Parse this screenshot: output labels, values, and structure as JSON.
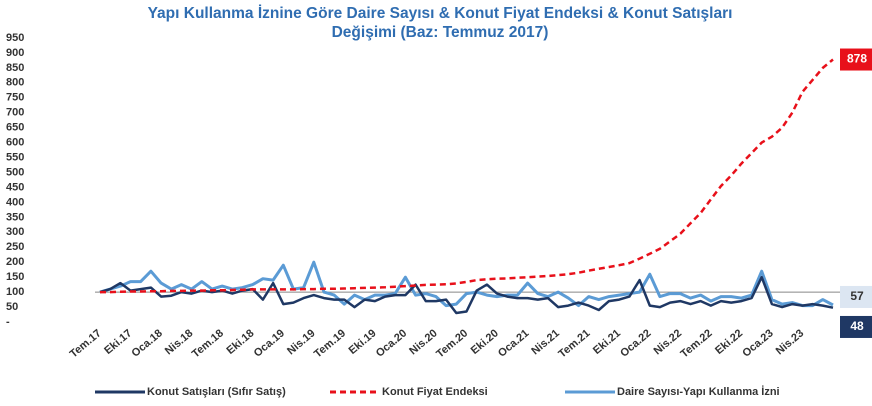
{
  "chart_data": {
    "type": "line",
    "title": "Yapı Kullanma İznine Göre Daire Sayısı & Konut Fiyat Endeksi & Konut Satışları Değişimi (Baz: Temmuz 2017)",
    "categories": [
      "Tem.17",
      null,
      null,
      "Eki.17",
      null,
      null,
      "Oca.18",
      null,
      null,
      "Nis.18",
      null,
      null,
      "Tem.18",
      null,
      null,
      "Eki.18",
      null,
      null,
      "Oca.19",
      null,
      null,
      "Nis.19",
      null,
      null,
      "Tem.19",
      null,
      null,
      "Eki.19",
      null,
      null,
      "Oca.20",
      null,
      null,
      "Nis.20",
      null,
      null,
      "Tem.20",
      null,
      null,
      "Eki.20",
      null,
      null,
      "Oca.21",
      null,
      null,
      "Nis.21",
      null,
      null,
      "Tem.21",
      null,
      null,
      "Eki.21",
      null,
      null,
      "Oca.22",
      null,
      null,
      "Nis.22",
      null,
      null,
      "Tem.22",
      null,
      null,
      "Eki.22",
      null,
      null,
      "Oca.23",
      null,
      null,
      "Nis.23",
      null,
      null,
      null
    ],
    "series": [
      {
        "name": "Konut Satışları (Sıfır Satış)",
        "color": "#1f3864",
        "end_label": "48",
        "values": [
          100,
          110,
          130,
          105,
          110,
          115,
          85,
          88,
          100,
          95,
          105,
          100,
          105,
          95,
          105,
          110,
          75,
          130,
          60,
          65,
          80,
          90,
          80,
          75,
          75,
          50,
          75,
          70,
          85,
          90,
          90,
          125,
          70,
          70,
          75,
          30,
          35,
          105,
          125,
          95,
          85,
          80,
          80,
          75,
          80,
          50,
          55,
          65,
          55,
          40,
          70,
          75,
          85,
          140,
          55,
          50,
          65,
          70,
          60,
          70,
          55,
          70,
          65,
          70,
          80,
          150,
          60,
          50,
          60,
          55,
          60,
          55,
          48
        ]
      },
      {
        "name": "Konut Fiyat Endeksi",
        "color": "#e8101a",
        "dashed": true,
        "end_label": "878",
        "values": [
          100,
          100,
          101,
          102,
          102,
          103,
          103,
          104,
          104,
          105,
          105,
          106,
          106,
          107,
          108,
          109,
          109,
          109,
          109,
          109,
          110,
          110,
          111,
          111,
          112,
          113,
          114,
          115,
          116,
          118,
          120,
          122,
          124,
          125,
          126,
          129,
          134,
          140,
          143,
          145,
          146,
          148,
          150,
          152,
          154,
          157,
          160,
          165,
          172,
          178,
          184,
          190,
          197,
          212,
          228,
          245,
          270,
          295,
          330,
          365,
          410,
          455,
          490,
          530,
          565,
          600,
          620,
          650,
          700,
          770,
          810,
          850,
          878
        ]
      },
      {
        "name": "Daire Sayısı-Yapı Kullanma İzni",
        "color": "#5b9bd5",
        "end_label": "57",
        "end_label_color": "#dce6f2",
        "values": [
          100,
          110,
          120,
          135,
          135,
          170,
          130,
          110,
          125,
          110,
          135,
          110,
          120,
          110,
          115,
          125,
          145,
          140,
          190,
          110,
          115,
          200,
          100,
          90,
          60,
          90,
          75,
          90,
          90,
          95,
          150,
          90,
          95,
          85,
          55,
          60,
          95,
          100,
          90,
          85,
          90,
          90,
          130,
          95,
          85,
          100,
          80,
          55,
          85,
          75,
          85,
          90,
          95,
          100,
          160,
          85,
          95,
          95,
          80,
          90,
          70,
          85,
          85,
          80,
          90,
          170,
          75,
          60,
          65,
          55,
          55,
          75,
          57
        ]
      }
    ],
    "reference_line": 100,
    "ylim": [
      0,
      950
    ],
    "yticks": [
      {
        "value": 0,
        "label": "-"
      },
      50,
      100,
      150,
      200,
      250,
      300,
      350,
      400,
      450,
      500,
      550,
      600,
      650,
      700,
      750,
      800,
      850,
      900,
      950
    ],
    "legend": "bottom"
  }
}
